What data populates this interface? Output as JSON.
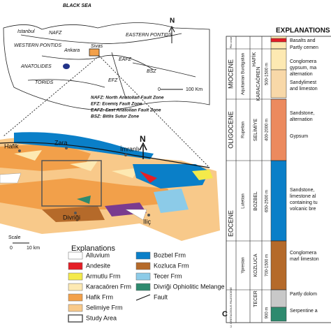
{
  "inset_map": {
    "labels": [
      "BLACK SEA",
      "Istanbul",
      "NAFZ",
      "EASTERN PONTIDS",
      "WESTERN PONTIDS",
      "Ankara",
      "Sivas",
      "ANATOLIDES",
      "TORIDS",
      "EFZ",
      "EAFZ",
      "BSZ"
    ],
    "north": "N",
    "scale": [
      "0",
      "100 Km"
    ],
    "faults": [
      "NAFZ: North Anatolian Fault Zone",
      "EFZ: Ecemiş Fault Zone",
      "EAFZ: East Anatolian Fault Zone",
      "BSZ: Bitlis Sutur Zone"
    ]
  },
  "main_map": {
    "labels": [
      "Hafik",
      "Zara",
      "İmranlı",
      "Divriği",
      "Iliç"
    ],
    "north": "N",
    "scale_title": "Scale",
    "scale": [
      "0",
      "10 km"
    ]
  },
  "legend": {
    "title": "Explanations",
    "items": [
      "Alluvium",
      "Andesite",
      "Armutlu Frm",
      "Karacaören Frm",
      "Hafik Frm",
      "Selimiye Frm",
      "Study Area",
      "Bozbel Frm",
      "Kozluca Frm",
      "Tecer Frm",
      "Divriği Ophiolitic Melange",
      "Fault"
    ]
  },
  "column": {
    "title": "EXPLANATIONS",
    "epochs": [
      "Plio cene",
      "MIOCENE",
      "OLIGOCENE",
      "EOCENE",
      "U. CRETACEOUS PALEOCENE"
    ],
    "stages": [
      "Aquitanian Burdigalian",
      "Rupelian",
      "Lutetian",
      "Ypresian"
    ],
    "formations": [
      "HAFİK",
      "KARACAÖREN",
      "SELİMİYE",
      "BOZBEL",
      "KOZLUCA",
      "TECER"
    ],
    "thicknesses": [
      "500-1500 m",
      "400-2000 m",
      "650-2500 m",
      "700-1500 m",
      "900 m"
    ],
    "descriptions": [
      "Basalts and",
      "Partly cemen",
      "Conglomera",
      "gypsum, ma",
      "alternation",
      "Sandylimest",
      "and limeston",
      "Sandstone,",
      "alternation",
      "Gypsum",
      "Sandstone,",
      "limestone al",
      "containing tu",
      "volcanic bre",
      "Conglomera",
      "marl limeston",
      "Partly dolom",
      "Serpentine a"
    ],
    "panel_label": "C"
  }
}
